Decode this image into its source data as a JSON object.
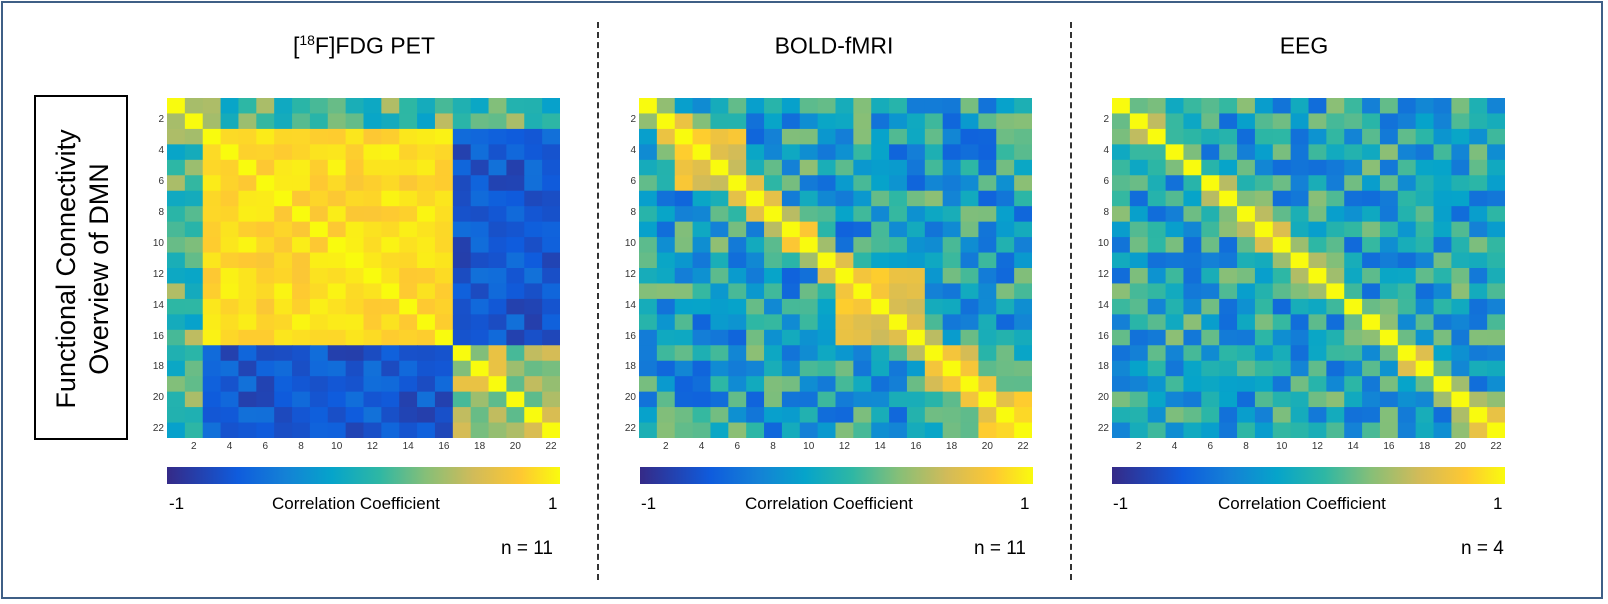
{
  "side_label": {
    "line1": "Functional Connectivity",
    "line2": "Overview of DMN"
  },
  "chart_data": [
    {
      "type": "heatmap",
      "title_prefix": "[",
      "title_sup": "18",
      "title_suffix": "F]FDG PET",
      "n_label": "n = 11",
      "size": 22,
      "colorbar": {
        "min_label": "-1",
        "max_label": "1",
        "label": "Correlation Coefficient",
        "vmin": -1,
        "vmax": 1
      },
      "x_ticks": [
        "2",
        "4",
        "6",
        "8",
        "10",
        "12",
        "14",
        "16",
        "18",
        "20",
        "22"
      ],
      "y_ticks": [
        "2",
        "4",
        "6",
        "8",
        "10",
        "12",
        "14",
        "16",
        "18",
        "20",
        "22"
      ],
      "pattern": "two-block",
      "description_values": {
        "main_block_nodes": "3-16",
        "main_block_r": 0.85,
        "off_block_r": -0.6
      }
    },
    {
      "type": "heatmap",
      "title_prefix": "",
      "title_sup": "",
      "title_suffix": "BOLD-fMRI",
      "n_label": "n = 11",
      "size": 22,
      "colorbar": {
        "min_label": "-1",
        "max_label": "1",
        "label": "Correlation Coefficient",
        "vmin": -1,
        "vmax": 1
      },
      "x_ticks": [
        "2",
        "4",
        "6",
        "8",
        "10",
        "12",
        "14",
        "16",
        "18",
        "20",
        "22"
      ],
      "y_ticks": [
        "2",
        "4",
        "6",
        "8",
        "10",
        "12",
        "14",
        "16",
        "18",
        "20",
        "22"
      ],
      "pattern": "clustered"
    },
    {
      "type": "heatmap",
      "title_prefix": "",
      "title_sup": "",
      "title_suffix": "EEG",
      "n_label": "n = 4",
      "size": 22,
      "colorbar": {
        "min_label": "-1",
        "max_label": "1",
        "label": "Correlation Coefficient",
        "vmin": -1,
        "vmax": 1
      },
      "x_ticks": [
        "2",
        "4",
        "6",
        "8",
        "10",
        "12",
        "14",
        "16",
        "18",
        "20",
        "22"
      ],
      "y_ticks": [
        "2",
        "4",
        "6",
        "8",
        "10",
        "12",
        "14",
        "16",
        "18",
        "20",
        "22"
      ],
      "pattern": "diagonal"
    }
  ],
  "colors": {
    "frame": "#3f5f86"
  }
}
